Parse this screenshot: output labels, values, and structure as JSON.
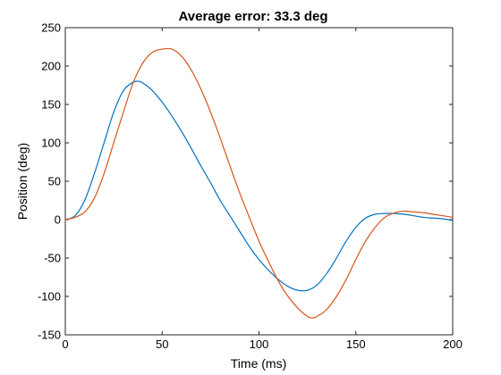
{
  "chart_data": {
    "type": "line",
    "title": "Average error:  33.3 deg",
    "xlabel": "Time (ms)",
    "ylabel": "Position (deg)",
    "xlim": [
      0,
      200
    ],
    "ylim": [
      -150,
      250
    ],
    "xticks": [
      0,
      50,
      100,
      150,
      200
    ],
    "yticks": [
      -150,
      -100,
      -50,
      0,
      50,
      100,
      150,
      200,
      250
    ],
    "grid": false,
    "legend": "none",
    "series": [
      {
        "color": "#0072BD",
        "x": [
          0,
          5,
          10,
          15,
          20,
          25,
          30,
          35,
          38,
          40,
          45,
          50,
          55,
          60,
          65,
          70,
          75,
          80,
          85,
          90,
          95,
          100,
          105,
          110,
          115,
          120,
          125,
          130,
          135,
          140,
          145,
          150,
          155,
          160,
          165,
          170,
          175,
          180,
          185,
          190,
          195,
          200
        ],
        "y": [
          0,
          5,
          25,
          60,
          100,
          140,
          168,
          179,
          180,
          178,
          168,
          153,
          135,
          115,
          93,
          70,
          48,
          25,
          5,
          -15,
          -35,
          -52,
          -66,
          -78,
          -87,
          -92,
          -92,
          -85,
          -70,
          -50,
          -28,
          -10,
          2,
          7,
          8,
          8,
          7,
          5,
          3,
          2,
          1,
          -1
        ]
      },
      {
        "color": "#D95319",
        "x": [
          0,
          5,
          10,
          15,
          20,
          25,
          30,
          35,
          40,
          45,
          50,
          55,
          60,
          65,
          70,
          75,
          80,
          85,
          90,
          95,
          100,
          105,
          110,
          115,
          120,
          125,
          128,
          130,
          135,
          140,
          145,
          150,
          155,
          160,
          165,
          170,
          175,
          180,
          185,
          190,
          195,
          200
        ],
        "y": [
          0,
          3,
          10,
          28,
          60,
          100,
          140,
          178,
          204,
          218,
          222,
          222,
          213,
          195,
          170,
          140,
          106,
          70,
          35,
          3,
          -28,
          -55,
          -80,
          -100,
          -115,
          -126,
          -128,
          -126,
          -117,
          -100,
          -78,
          -52,
          -28,
          -10,
          3,
          9,
          11,
          10,
          9,
          7,
          5,
          3
        ]
      }
    ]
  }
}
